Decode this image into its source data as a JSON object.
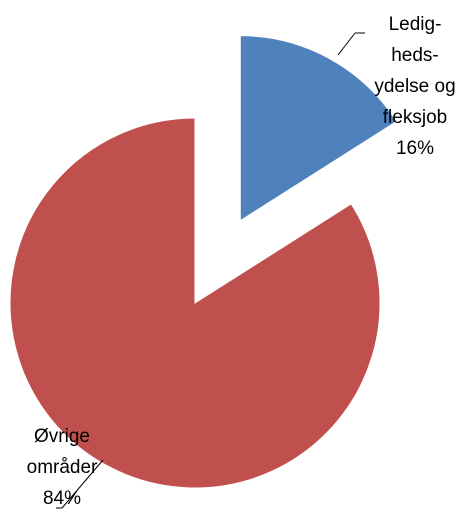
{
  "chart_data": {
    "type": "pie",
    "categories": [
      [
        "Ledig-",
        "heds-",
        "ydelse og",
        "fleksjob"
      ],
      [
        "Øvrige",
        "områder"
      ]
    ],
    "values": [
      16,
      84
    ],
    "value_labels": [
      "16%",
      "84%"
    ],
    "colors": [
      "#4f81bd",
      "#c0504d"
    ],
    "exploded": [
      true,
      false
    ]
  }
}
